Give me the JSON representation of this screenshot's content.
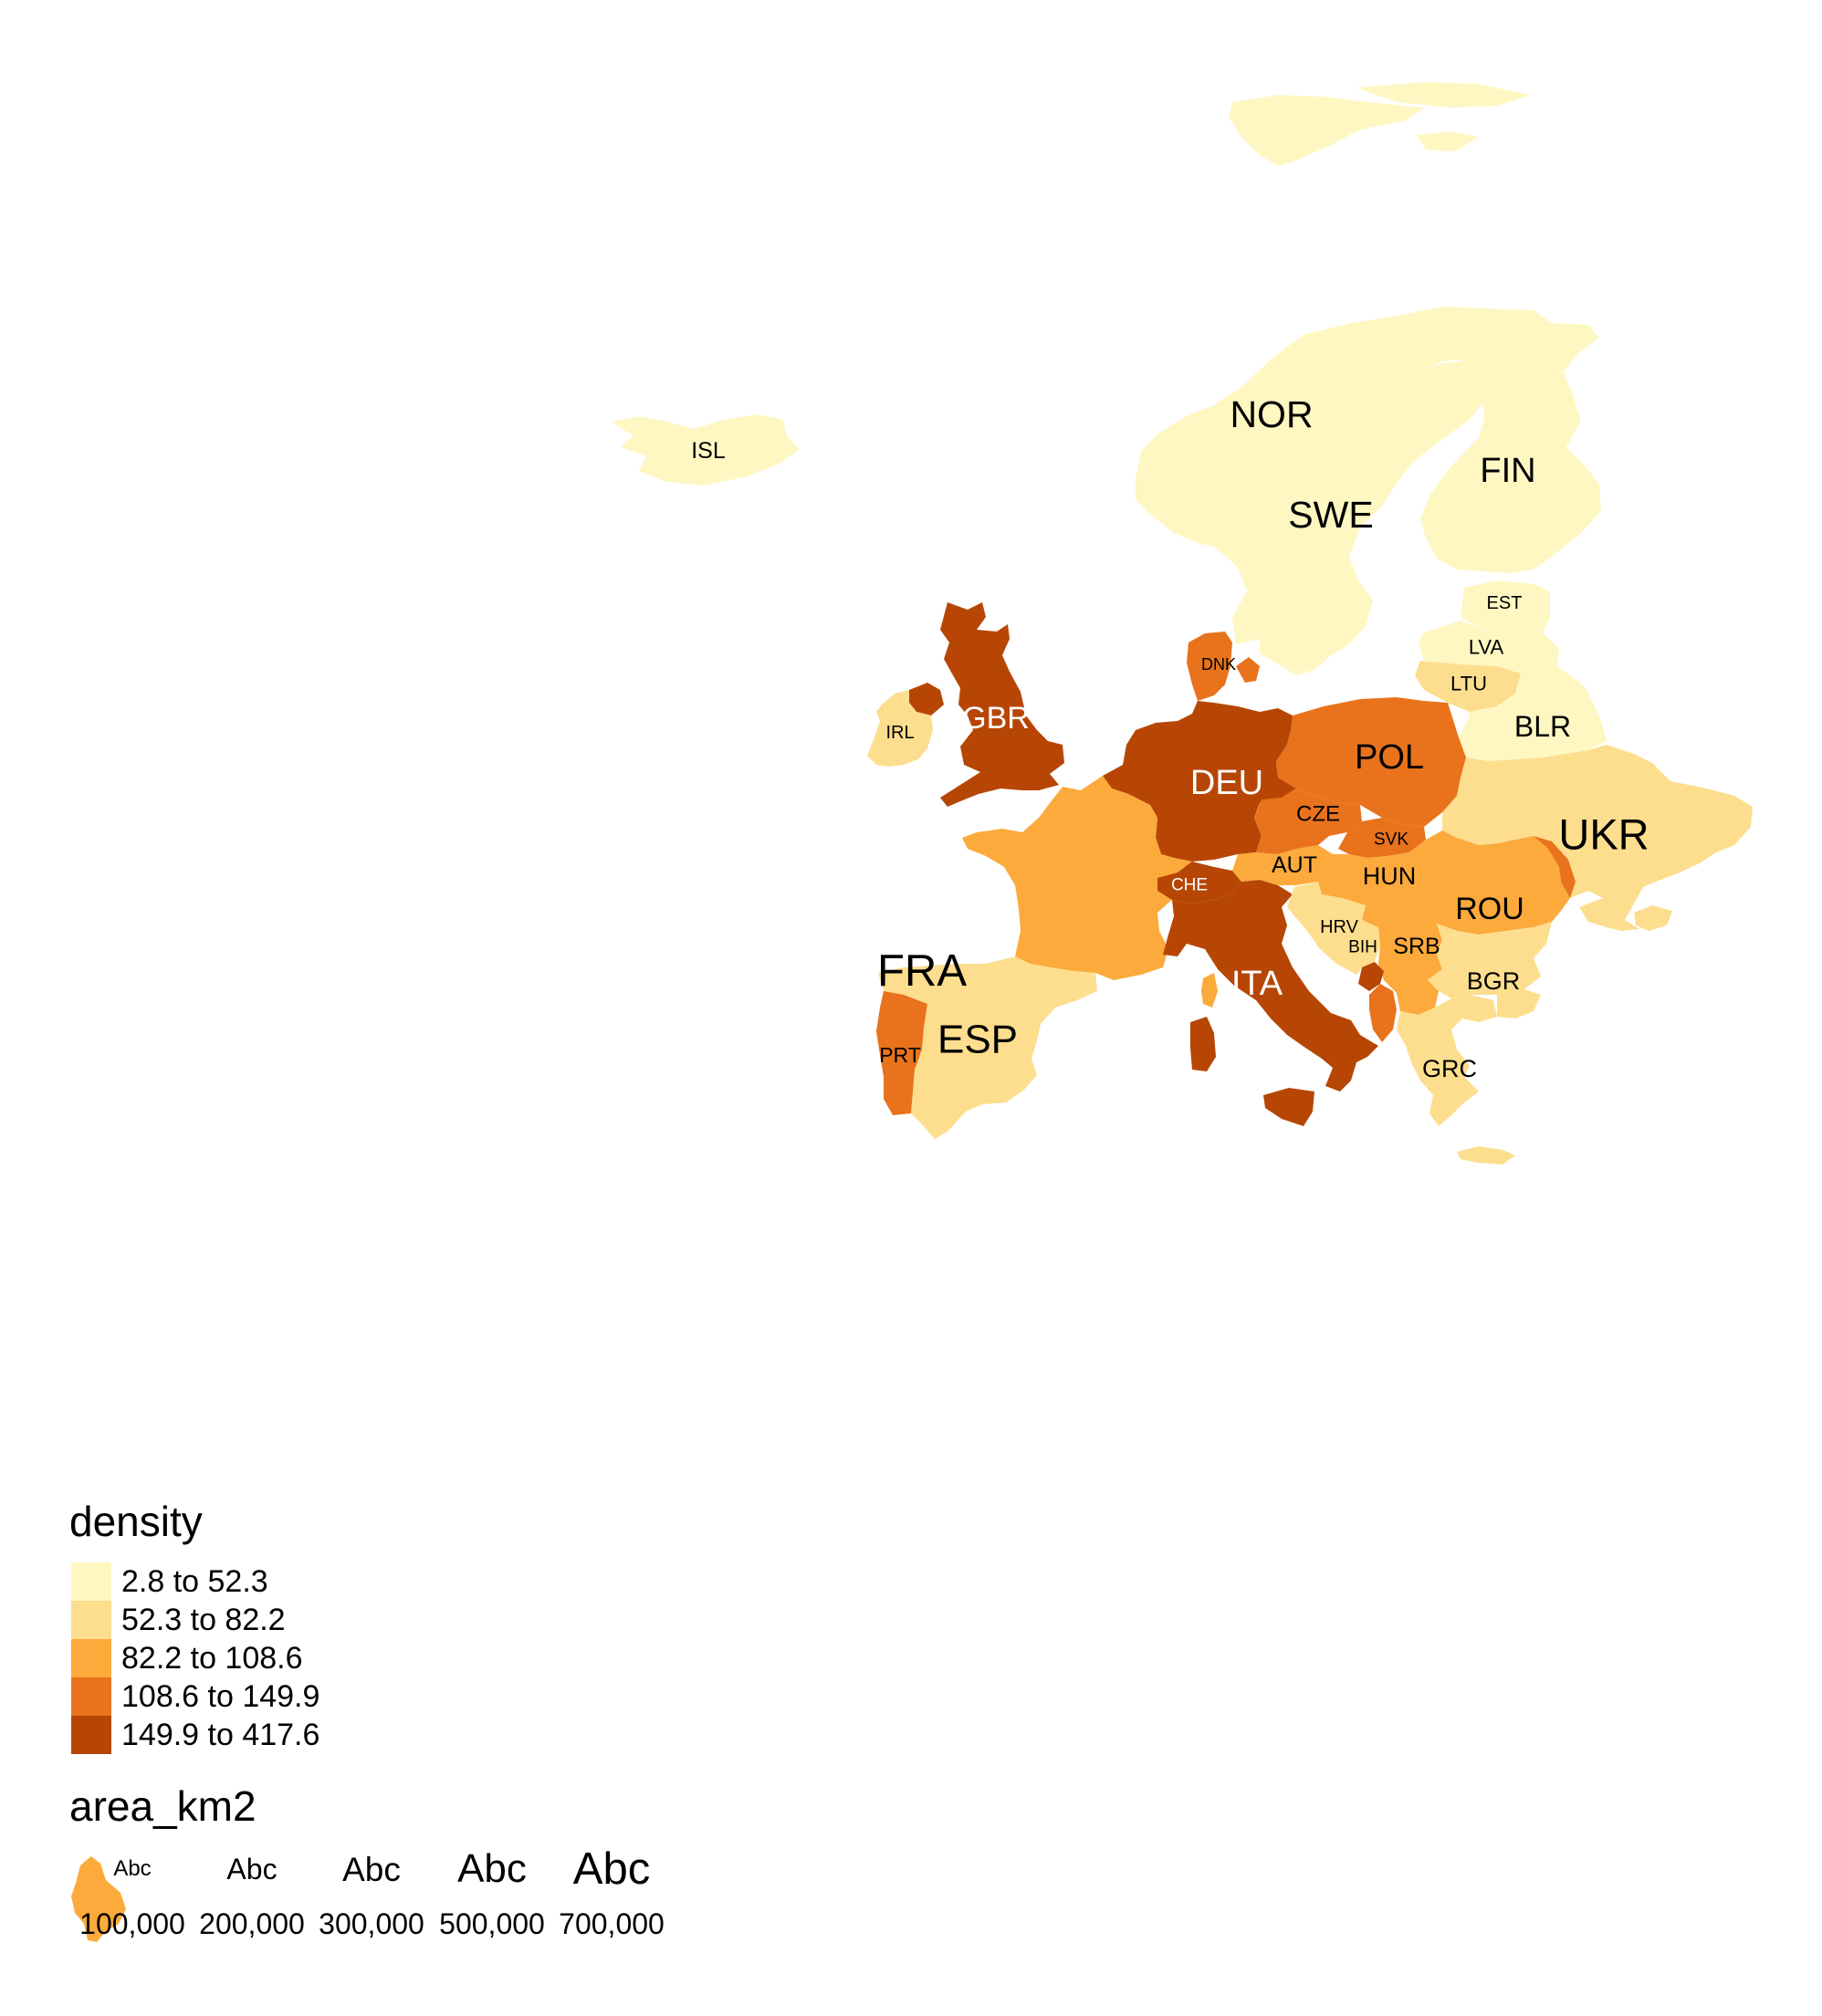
{
  "map": {
    "fill_variable": "density",
    "size_variable": "area_km2",
    "classes": [
      {
        "label": "2.8 to 52.3",
        "color": "#FFF7C2"
      },
      {
        "label": "52.3 to 82.2",
        "color": "#FDDE8E"
      },
      {
        "label": "82.2 to 108.6",
        "color": "#FBAA3B"
      },
      {
        "label": "108.6 to 149.9",
        "color": "#E8731C"
      },
      {
        "label": "149.9 to 417.6",
        "color": "#B74605"
      }
    ],
    "countries": [
      {
        "code": "ISL",
        "class": 0
      },
      {
        "code": "NOR",
        "class": 0
      },
      {
        "code": "SWE",
        "class": 0
      },
      {
        "code": "FIN",
        "class": 0
      },
      {
        "code": "EST",
        "class": 0
      },
      {
        "code": "LVA",
        "class": 0
      },
      {
        "code": "LTU",
        "class": 1
      },
      {
        "code": "BLR",
        "class": 0
      },
      {
        "code": "UKR",
        "class": 1
      },
      {
        "code": "POL",
        "class": 3
      },
      {
        "code": "DEU",
        "class": 4
      },
      {
        "code": "DNK",
        "class": 3
      },
      {
        "code": "GBR",
        "class": 4
      },
      {
        "code": "IRL",
        "class": 1
      },
      {
        "code": "FRA",
        "class": 2
      },
      {
        "code": "ESP",
        "class": 1
      },
      {
        "code": "PRT",
        "class": 3
      },
      {
        "code": "CHE",
        "class": 4
      },
      {
        "code": "ITA",
        "class": 4
      },
      {
        "code": "AUT",
        "class": 2
      },
      {
        "code": "CZE",
        "class": 3
      },
      {
        "code": "SVK",
        "class": 3
      },
      {
        "code": "HUN",
        "class": 2
      },
      {
        "code": "ROU",
        "class": 2
      },
      {
        "code": "HRV",
        "class": 1
      },
      {
        "code": "BIH",
        "class": 1
      },
      {
        "code": "SRB",
        "class": 2
      },
      {
        "code": "BGR",
        "class": 1
      },
      {
        "code": "GRC",
        "class": 1
      }
    ]
  },
  "legend": {
    "fill_title": "density",
    "fill_items": [
      "2.8 to 52.3",
      "52.3 to 82.2",
      "82.2 to 108.6",
      "108.6 to 149.9",
      "149.9 to 417.6"
    ],
    "size_title": "area_km2",
    "size_sample_text": "Abc",
    "size_items": [
      "100,000",
      "200,000",
      "300,000",
      "500,000",
      "700,000"
    ]
  }
}
